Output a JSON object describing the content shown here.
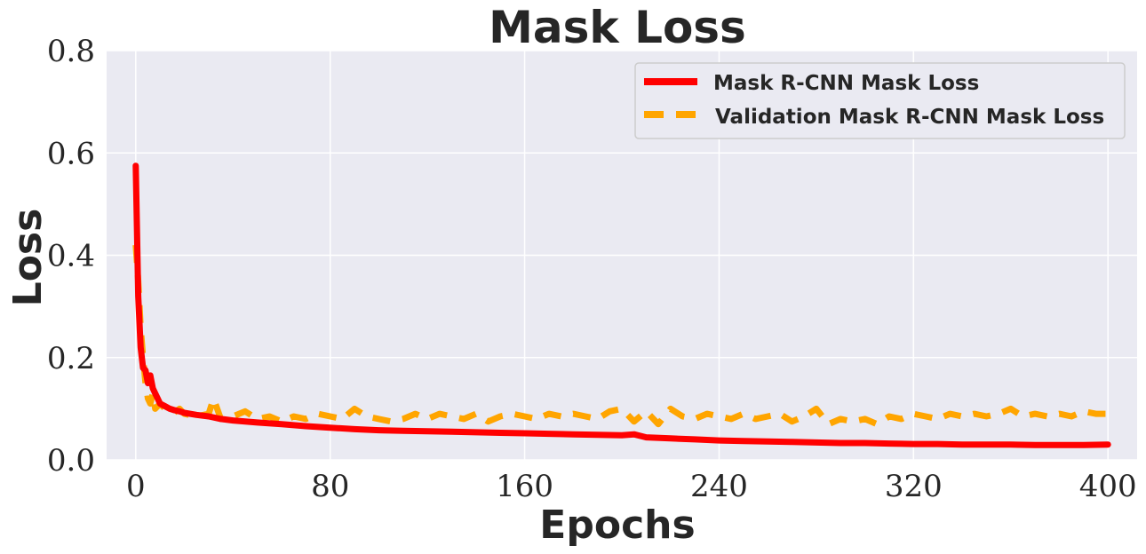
{
  "chart_data": {
    "type": "line",
    "title": "Mask Loss",
    "xlabel": "Epochs",
    "ylabel": "Loss",
    "xlim": [
      -12,
      412
    ],
    "ylim": [
      0,
      0.8
    ],
    "xticks": [
      0,
      80,
      160,
      240,
      320,
      400
    ],
    "xtick_labels": [
      "0",
      "80",
      "160",
      "240",
      "320",
      "400"
    ],
    "yticks": [
      0.0,
      0.2,
      0.4,
      0.6,
      0.8
    ],
    "ytick_labels": [
      "0.0",
      "0.2",
      "0.4",
      "0.6",
      "0.8"
    ],
    "grid": true,
    "legend_position": "top-right",
    "series": [
      {
        "name": "Mask R-CNN Mask Loss",
        "color": "#ff0000",
        "style": "solid",
        "x": [
          0,
          1,
          2,
          3,
          4,
          5,
          6,
          7,
          8,
          9,
          10,
          12,
          14,
          16,
          18,
          20,
          25,
          30,
          35,
          40,
          50,
          60,
          70,
          80,
          90,
          100,
          110,
          120,
          130,
          140,
          150,
          160,
          170,
          180,
          190,
          200,
          205,
          210,
          220,
          230,
          240,
          250,
          260,
          270,
          280,
          290,
          300,
          310,
          320,
          330,
          340,
          350,
          360,
          370,
          380,
          390,
          400
        ],
        "y": [
          0.575,
          0.32,
          0.22,
          0.18,
          0.175,
          0.15,
          0.165,
          0.14,
          0.13,
          0.12,
          0.11,
          0.105,
          0.1,
          0.097,
          0.095,
          0.092,
          0.088,
          0.085,
          0.08,
          0.077,
          0.073,
          0.07,
          0.066,
          0.063,
          0.06,
          0.058,
          0.057,
          0.056,
          0.055,
          0.054,
          0.053,
          0.052,
          0.051,
          0.05,
          0.049,
          0.048,
          0.05,
          0.044,
          0.042,
          0.04,
          0.038,
          0.037,
          0.036,
          0.035,
          0.034,
          0.033,
          0.033,
          0.032,
          0.031,
          0.031,
          0.03,
          0.03,
          0.03,
          0.029,
          0.029,
          0.029,
          0.03
        ]
      },
      {
        "name": "Validation Mask R-CNN Mask Loss",
        "color": "#ffa500",
        "style": "dashed",
        "x": [
          0,
          1,
          2,
          3,
          4,
          5,
          6,
          7,
          8,
          10,
          12,
          15,
          18,
          20,
          25,
          30,
          32,
          35,
          40,
          45,
          50,
          55,
          60,
          65,
          70,
          75,
          80,
          85,
          90,
          95,
          100,
          105,
          110,
          115,
          120,
          125,
          130,
          135,
          140,
          145,
          150,
          155,
          160,
          165,
          170,
          175,
          180,
          185,
          190,
          195,
          200,
          205,
          210,
          215,
          220,
          225,
          230,
          235,
          240,
          245,
          250,
          255,
          260,
          265,
          270,
          275,
          280,
          285,
          290,
          295,
          300,
          305,
          310,
          315,
          320,
          325,
          330,
          335,
          340,
          345,
          350,
          355,
          360,
          365,
          370,
          375,
          380,
          385,
          390,
          395,
          400
        ],
        "y": [
          0.42,
          0.35,
          0.26,
          0.2,
          0.15,
          0.12,
          0.11,
          0.13,
          0.1,
          0.11,
          0.1,
          0.09,
          0.1,
          0.09,
          0.085,
          0.09,
          0.12,
          0.08,
          0.085,
          0.095,
          0.08,
          0.085,
          0.075,
          0.085,
          0.08,
          0.09,
          0.085,
          0.08,
          0.1,
          0.085,
          0.08,
          0.075,
          0.08,
          0.09,
          0.08,
          0.09,
          0.085,
          0.08,
          0.09,
          0.075,
          0.085,
          0.09,
          0.085,
          0.08,
          0.09,
          0.085,
          0.09,
          0.085,
          0.08,
          0.095,
          0.1,
          0.075,
          0.095,
          0.07,
          0.1,
          0.085,
          0.08,
          0.09,
          0.085,
          0.08,
          0.09,
          0.08,
          0.085,
          0.09,
          0.075,
          0.085,
          0.1,
          0.07,
          0.08,
          0.075,
          0.08,
          0.07,
          0.085,
          0.08,
          0.09,
          0.085,
          0.08,
          0.09,
          0.085,
          0.09,
          0.085,
          0.09,
          0.1,
          0.085,
          0.09,
          0.085,
          0.09,
          0.085,
          0.095,
          0.09,
          0.09
        ]
      }
    ]
  }
}
